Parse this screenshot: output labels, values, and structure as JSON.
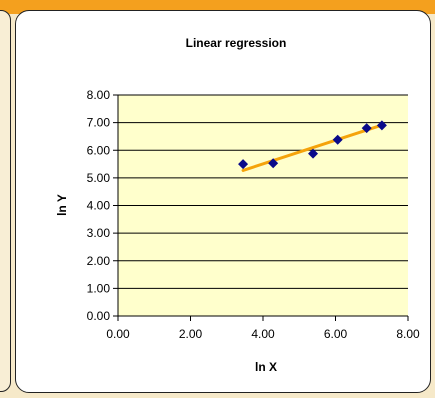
{
  "chart_data": {
    "type": "scatter",
    "title": "Linear regression",
    "xlabel": "ln X",
    "ylabel": "ln Y",
    "xlim": [
      0,
      8
    ],
    "ylim": [
      0,
      8
    ],
    "x_ticks": [
      "0.00",
      "2.00",
      "4.00",
      "6.00",
      "8.00"
    ],
    "y_ticks": [
      "0.00",
      "1.00",
      "2.00",
      "3.00",
      "4.00",
      "5.00",
      "6.00",
      "7.00",
      "8.00"
    ],
    "grid": true,
    "legend": "none",
    "series": [
      {
        "values": [
          {
            "x": 3.45,
            "y": 5.5
          },
          {
            "x": 4.28,
            "y": 5.53
          },
          {
            "x": 5.38,
            "y": 5.88
          },
          {
            "x": 6.06,
            "y": 6.38
          },
          {
            "x": 6.86,
            "y": 6.8
          },
          {
            "x": 7.28,
            "y": 6.9
          }
        ],
        "color": "#0a0a8a",
        "marker": "diamond"
      }
    ],
    "trendline": {
      "type": "linear",
      "x": [
        3.45,
        7.28
      ],
      "y": [
        5.27,
        6.91
      ],
      "color": "#f5a30a"
    },
    "plot_background": "#ffffcc",
    "grid_color": "#000000"
  }
}
